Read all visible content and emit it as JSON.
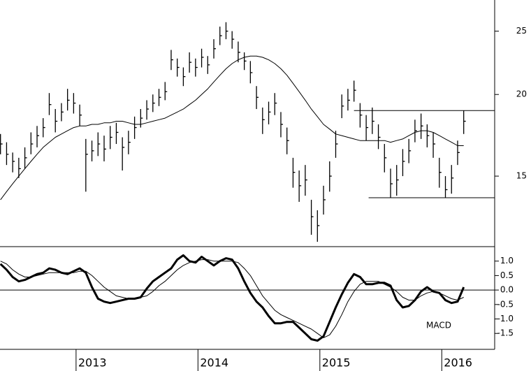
{
  "chart_data": [
    {
      "type": "ohlc",
      "color": "#000000",
      "log_scale": true,
      "xlim": [
        2012.376,
        2016.434
      ],
      "ylim": [
        11.7,
        27.9
      ],
      "yticks": [
        15,
        20,
        25
      ],
      "x": [
        2012.38,
        2012.43,
        2012.48,
        2012.53,
        2012.58,
        2012.63,
        2012.68,
        2012.73,
        2012.78,
        2012.83,
        2012.88,
        2012.93,
        2012.98,
        2013.03,
        2013.08,
        2013.13,
        2013.18,
        2013.23,
        2013.28,
        2013.33,
        2013.38,
        2013.43,
        2013.48,
        2013.53,
        2013.58,
        2013.63,
        2013.68,
        2013.73,
        2013.78,
        2013.83,
        2013.88,
        2013.93,
        2013.98,
        2014.03,
        2014.08,
        2014.13,
        2014.18,
        2014.23,
        2014.28,
        2014.33,
        2014.38,
        2014.43,
        2014.48,
        2014.53,
        2014.58,
        2014.63,
        2014.68,
        2014.73,
        2014.78,
        2014.83,
        2014.88,
        2014.93,
        2014.98,
        2015.03,
        2015.08,
        2015.13,
        2015.18,
        2015.23,
        2015.28,
        2015.33,
        2015.38,
        2015.43,
        2015.48,
        2015.53,
        2015.58,
        2015.63,
        2015.68,
        2015.73,
        2015.78,
        2015.83,
        2015.88,
        2015.93,
        2015.98,
        2016.03,
        2016.08,
        2016.13,
        2016.18
      ],
      "high": [
        17.4,
        16.9,
        16.3,
        16.0,
        16.6,
        17.5,
        17.9,
        18.4,
        20.1,
        19.0,
        19.4,
        20.4,
        20.1,
        19.3,
        17.1,
        17.0,
        17.5,
        17.3,
        17.9,
        18.1,
        17.2,
        17.6,
        18.5,
        19.0,
        19.6,
        20.0,
        20.4,
        20.9,
        23.4,
        22.7,
        22.0,
        23.2,
        22.7,
        23.5,
        22.9,
        24.3,
        25.4,
        25.8,
        25.0,
        24.1,
        23.2,
        22.5,
        20.6,
        19.1,
        19.5,
        20.1,
        18.8,
        17.8,
        16.0,
        15.3,
        15.6,
        13.8,
        13.3,
        14.5,
        15.8,
        17.6,
        20.0,
        20.4,
        21.0,
        19.4,
        18.6,
        19.1,
        18.0,
        16.8,
        15.4,
        15.6,
        16.5,
        17.1,
        18.3,
        18.7,
        18.0,
        17.5,
        16.0,
        15.0,
        15.6,
        17.0,
        18.9
      ],
      "low": [
        16.2,
        15.6,
        15.2,
        14.9,
        15.4,
        16.2,
        16.6,
        17.2,
        18.6,
        17.5,
        18.2,
        18.9,
        18.7,
        17.9,
        14.2,
        15.8,
        16.1,
        15.8,
        16.5,
        16.8,
        15.3,
        16.2,
        17.1,
        17.8,
        18.3,
        18.8,
        19.2,
        19.6,
        21.8,
        21.3,
        20.6,
        21.6,
        21.3,
        22.0,
        21.5,
        22.7,
        23.8,
        24.3,
        23.5,
        22.4,
        21.8,
        20.8,
        19.0,
        17.4,
        18.0,
        18.6,
        17.2,
        16.2,
        14.4,
        13.7,
        14.0,
        12.2,
        11.9,
        13.1,
        14.2,
        16.0,
        18.4,
        18.9,
        19.5,
        17.8,
        17.0,
        17.4,
        16.5,
        15.2,
        13.9,
        14.0,
        15.0,
        15.7,
        16.9,
        17.1,
        16.6,
        16.0,
        14.4,
        13.9,
        14.1,
        15.6,
        17.4
      ],
      "close": [
        16.8,
        16.2,
        15.8,
        15.4,
        16.0,
        16.8,
        17.3,
        17.8,
        19.3,
        18.2,
        18.8,
        19.6,
        19.4,
        18.6,
        16.2,
        16.4,
        16.8,
        16.5,
        17.2,
        17.5,
        16.6,
        16.9,
        17.8,
        18.4,
        19.0,
        19.4,
        19.8,
        20.2,
        22.6,
        22.0,
        21.3,
        22.4,
        22.0,
        22.8,
        22.2,
        23.5,
        24.6,
        25.0,
        24.3,
        23.2,
        22.5,
        21.6,
        19.8,
        18.3,
        18.8,
        19.4,
        18.0,
        17.0,
        15.2,
        14.5,
        14.8,
        13.0,
        12.6,
        13.8,
        15.0,
        16.8,
        19.2,
        19.6,
        20.3,
        18.6,
        17.8,
        18.2,
        17.2,
        16.0,
        14.6,
        14.8,
        15.8,
        16.4,
        17.6,
        17.9,
        17.3,
        16.8,
        15.2,
        14.3,
        14.9,
        16.3,
        18.2
      ],
      "ma": [
        13.8,
        14.2,
        14.6,
        15.0,
        15.4,
        15.8,
        16.2,
        16.6,
        16.9,
        17.2,
        17.4,
        17.6,
        17.8,
        17.9,
        17.9,
        18.0,
        18.0,
        18.1,
        18.1,
        18.2,
        18.2,
        18.1,
        18.0,
        18.0,
        18.1,
        18.2,
        18.3,
        18.4,
        18.6,
        18.8,
        19.0,
        19.3,
        19.6,
        20.0,
        20.4,
        20.9,
        21.4,
        21.9,
        22.3,
        22.6,
        22.8,
        22.9,
        22.9,
        22.8,
        22.6,
        22.3,
        21.9,
        21.4,
        20.8,
        20.2,
        19.6,
        19.0,
        18.5,
        18.0,
        17.7,
        17.4,
        17.3,
        17.2,
        17.1,
        17.0,
        17.0,
        17.0,
        17.0,
        17.0,
        16.9,
        17.0,
        17.1,
        17.3,
        17.5,
        17.6,
        17.6,
        17.5,
        17.3,
        17.1,
        16.9,
        16.7,
        16.7
      ],
      "levels": [
        {
          "value": 18.9,
          "x_start": 2015.28
        },
        {
          "value": 13.9,
          "x_start": 2015.4
        }
      ]
    },
    {
      "type": "line",
      "label": "MACD",
      "zero_line": true,
      "ylim": [
        -2.05,
        1.5
      ],
      "yticks": [
        {
          "value": 1,
          "label": "1.0"
        },
        {
          "value": 0.5,
          "label": "0.5"
        },
        {
          "value": 0,
          "label": "0.0"
        },
        {
          "value": -0.5,
          "label": "-0.5"
        },
        {
          "value": -1,
          "label": "-1.0"
        },
        {
          "value": -1.5,
          "label": "-1.5"
        }
      ],
      "xticks": [
        2013,
        2014,
        2015,
        2016
      ],
      "series": [
        {
          "color": "#000000",
          "width": 3,
          "values": [
            0.9,
            0.7,
            0.45,
            0.3,
            0.35,
            0.45,
            0.55,
            0.6,
            0.75,
            0.7,
            0.6,
            0.55,
            0.65,
            0.75,
            0.6,
            0.1,
            -0.3,
            -0.4,
            -0.45,
            -0.4,
            -0.35,
            -0.3,
            -0.3,
            -0.25,
            0.05,
            0.3,
            0.45,
            0.6,
            0.75,
            1.05,
            1.2,
            1.0,
            0.95,
            1.15,
            1.0,
            0.85,
            1.0,
            1.1,
            1.05,
            0.75,
            0.3,
            -0.1,
            -0.4,
            -0.6,
            -0.9,
            -1.15,
            -1.15,
            -1.1,
            -1.1,
            -1.3,
            -1.5,
            -1.7,
            -1.75,
            -1.6,
            -1.1,
            -0.6,
            -0.15,
            0.25,
            0.55,
            0.45,
            0.2,
            0.2,
            0.25,
            0.25,
            0.15,
            -0.35,
            -0.6,
            -0.55,
            -0.35,
            -0.05,
            0.1,
            -0.05,
            -0.1,
            -0.35,
            -0.45,
            -0.4,
            0.1
          ]
        },
        {
          "color": "#000000",
          "width": 1,
          "values": [
            1.0,
            0.9,
            0.7,
            0.55,
            0.45,
            0.45,
            0.5,
            0.55,
            0.6,
            0.6,
            0.6,
            0.6,
            0.6,
            0.65,
            0.65,
            0.5,
            0.3,
            0.1,
            -0.05,
            -0.2,
            -0.25,
            -0.3,
            -0.3,
            -0.25,
            -0.2,
            -0.05,
            0.15,
            0.3,
            0.5,
            0.7,
            0.85,
            0.95,
            1.0,
            1.05,
            1.05,
            1.0,
            1.0,
            1.0,
            1.0,
            0.95,
            0.75,
            0.5,
            0.15,
            -0.2,
            -0.45,
            -0.7,
            -0.85,
            -0.95,
            -1.05,
            -1.15,
            -1.25,
            -1.35,
            -1.5,
            -1.65,
            -1.55,
            -1.25,
            -0.85,
            -0.4,
            -0.05,
            0.2,
            0.3,
            0.3,
            0.3,
            0.2,
            0.1,
            -0.05,
            -0.25,
            -0.35,
            -0.35,
            -0.2,
            -0.1,
            -0.05,
            -0.1,
            -0.2,
            -0.3,
            -0.35,
            -0.25
          ]
        }
      ]
    }
  ]
}
